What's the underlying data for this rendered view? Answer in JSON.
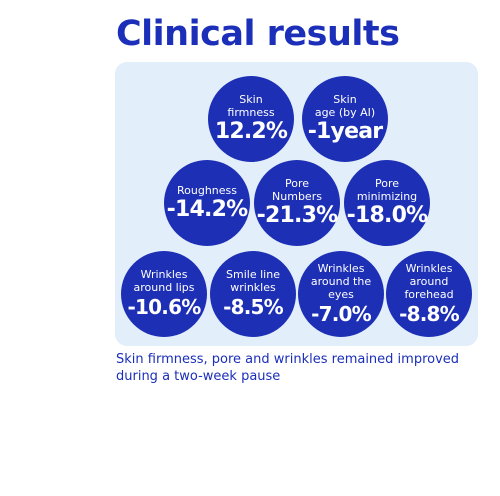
{
  "title": "Clinical results",
  "caption": "Skin firmness, pore and wrinkles remained improved during a two-week pause",
  "colors": {
    "brand_blue": "#1c2fb5",
    "panel_bg": "#e3eefb",
    "text_white": "#ffffff"
  },
  "results": [
    {
      "label": "Skin\nfirmness",
      "value": "12.2%"
    },
    {
      "label": "Skin\nage (by AI)",
      "value": "-1year"
    },
    {
      "label": "Roughness",
      "value": "-14.2%"
    },
    {
      "label": "Pore\nNumbers",
      "value": "-21.3%"
    },
    {
      "label": "Pore\nminimizing",
      "value": "-18.0%"
    },
    {
      "label": "Wrinkles\naround lips",
      "value": "-10.6%"
    },
    {
      "label": "Smile line\nwrinkles",
      "value": "-8.5%"
    },
    {
      "label": "Wrinkles\naround the\neyes",
      "value": "-7.0%"
    },
    {
      "label": "Wrinkles\naround\nforehead",
      "value": "-8.8%"
    }
  ]
}
